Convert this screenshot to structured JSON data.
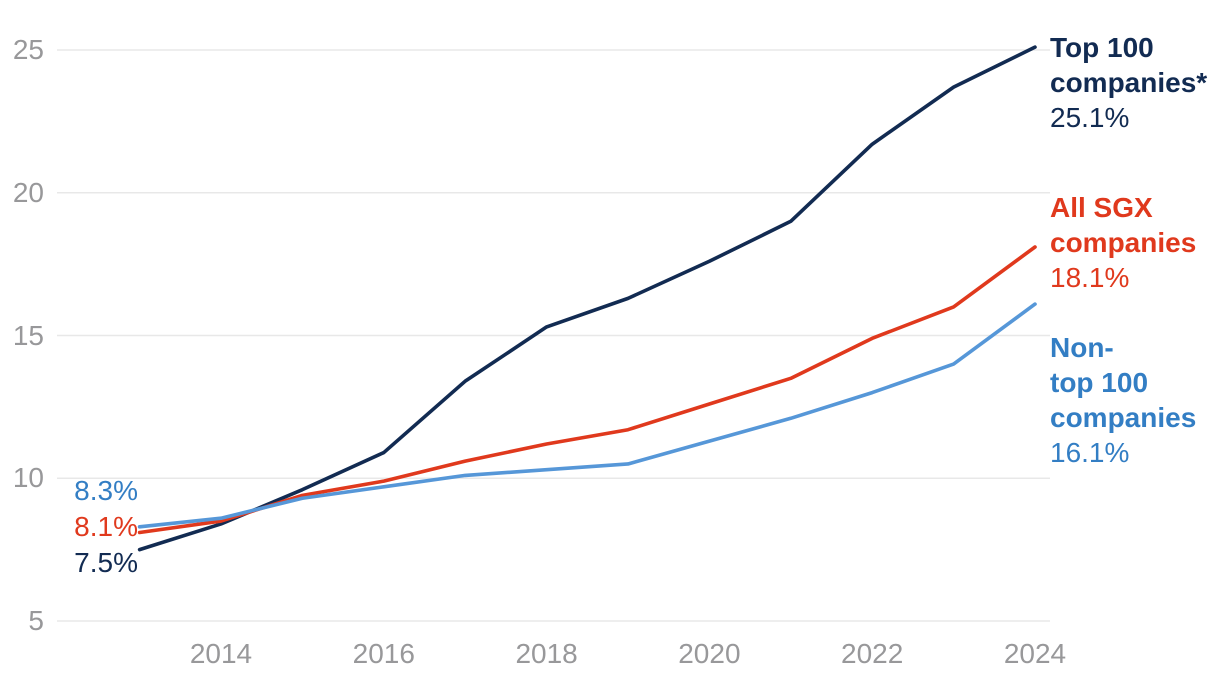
{
  "accent_colors": {
    "navy": "#122b52",
    "red": "#e0391d",
    "blue_line": "#5697d8",
    "blue_text": "#337ec4",
    "gridline": "#e8e8e8",
    "tick_text": "#98989a",
    "background": "#ffffff"
  },
  "chart_data": {
    "type": "line",
    "x": [
      2013,
      2014,
      2015,
      2016,
      2017,
      2018,
      2019,
      2020,
      2021,
      2022,
      2023,
      2024
    ],
    "xticks": [
      2014,
      2016,
      2018,
      2020,
      2022,
      2024
    ],
    "yticks": [
      25,
      20,
      15,
      10,
      5
    ],
    "xlim": [
      2013,
      2024
    ],
    "ylim": [
      5,
      25
    ],
    "grid": "horizontal-only",
    "legend_position": "right-of-line-ends",
    "title": "",
    "xlabel": "",
    "ylabel": "",
    "series": [
      {
        "key": "top-100",
        "name": "Top 100 companies*",
        "display": "Top 100\ncompanies*",
        "color": "#122b52",
        "text_color": "#122b52",
        "start_label": "7.5%",
        "end_label": "25.1%",
        "values": [
          7.5,
          8.4,
          9.6,
          10.9,
          13.4,
          15.3,
          16.3,
          17.6,
          19.0,
          21.7,
          23.7,
          25.1
        ]
      },
      {
        "key": "all-sgx",
        "name": "All SGX companies",
        "display": "All SGX\ncompanies",
        "color": "#e0391d",
        "text_color": "#e0391d",
        "start_label": "8.1%",
        "end_label": "18.1%",
        "values": [
          8.1,
          8.5,
          9.4,
          9.9,
          10.6,
          11.2,
          11.7,
          12.6,
          13.5,
          14.9,
          16.0,
          18.1
        ]
      },
      {
        "key": "non-top-100",
        "name": "Non-top 100 companies",
        "display": "Non-\ntop 100\ncompanies",
        "color": "#5697d8",
        "text_color": "#337ec4",
        "start_label": "8.3%",
        "end_label": "16.1%",
        "values": [
          8.3,
          8.6,
          9.3,
          9.7,
          10.1,
          10.3,
          10.5,
          11.3,
          12.1,
          13.0,
          14.0,
          16.1
        ]
      }
    ]
  }
}
